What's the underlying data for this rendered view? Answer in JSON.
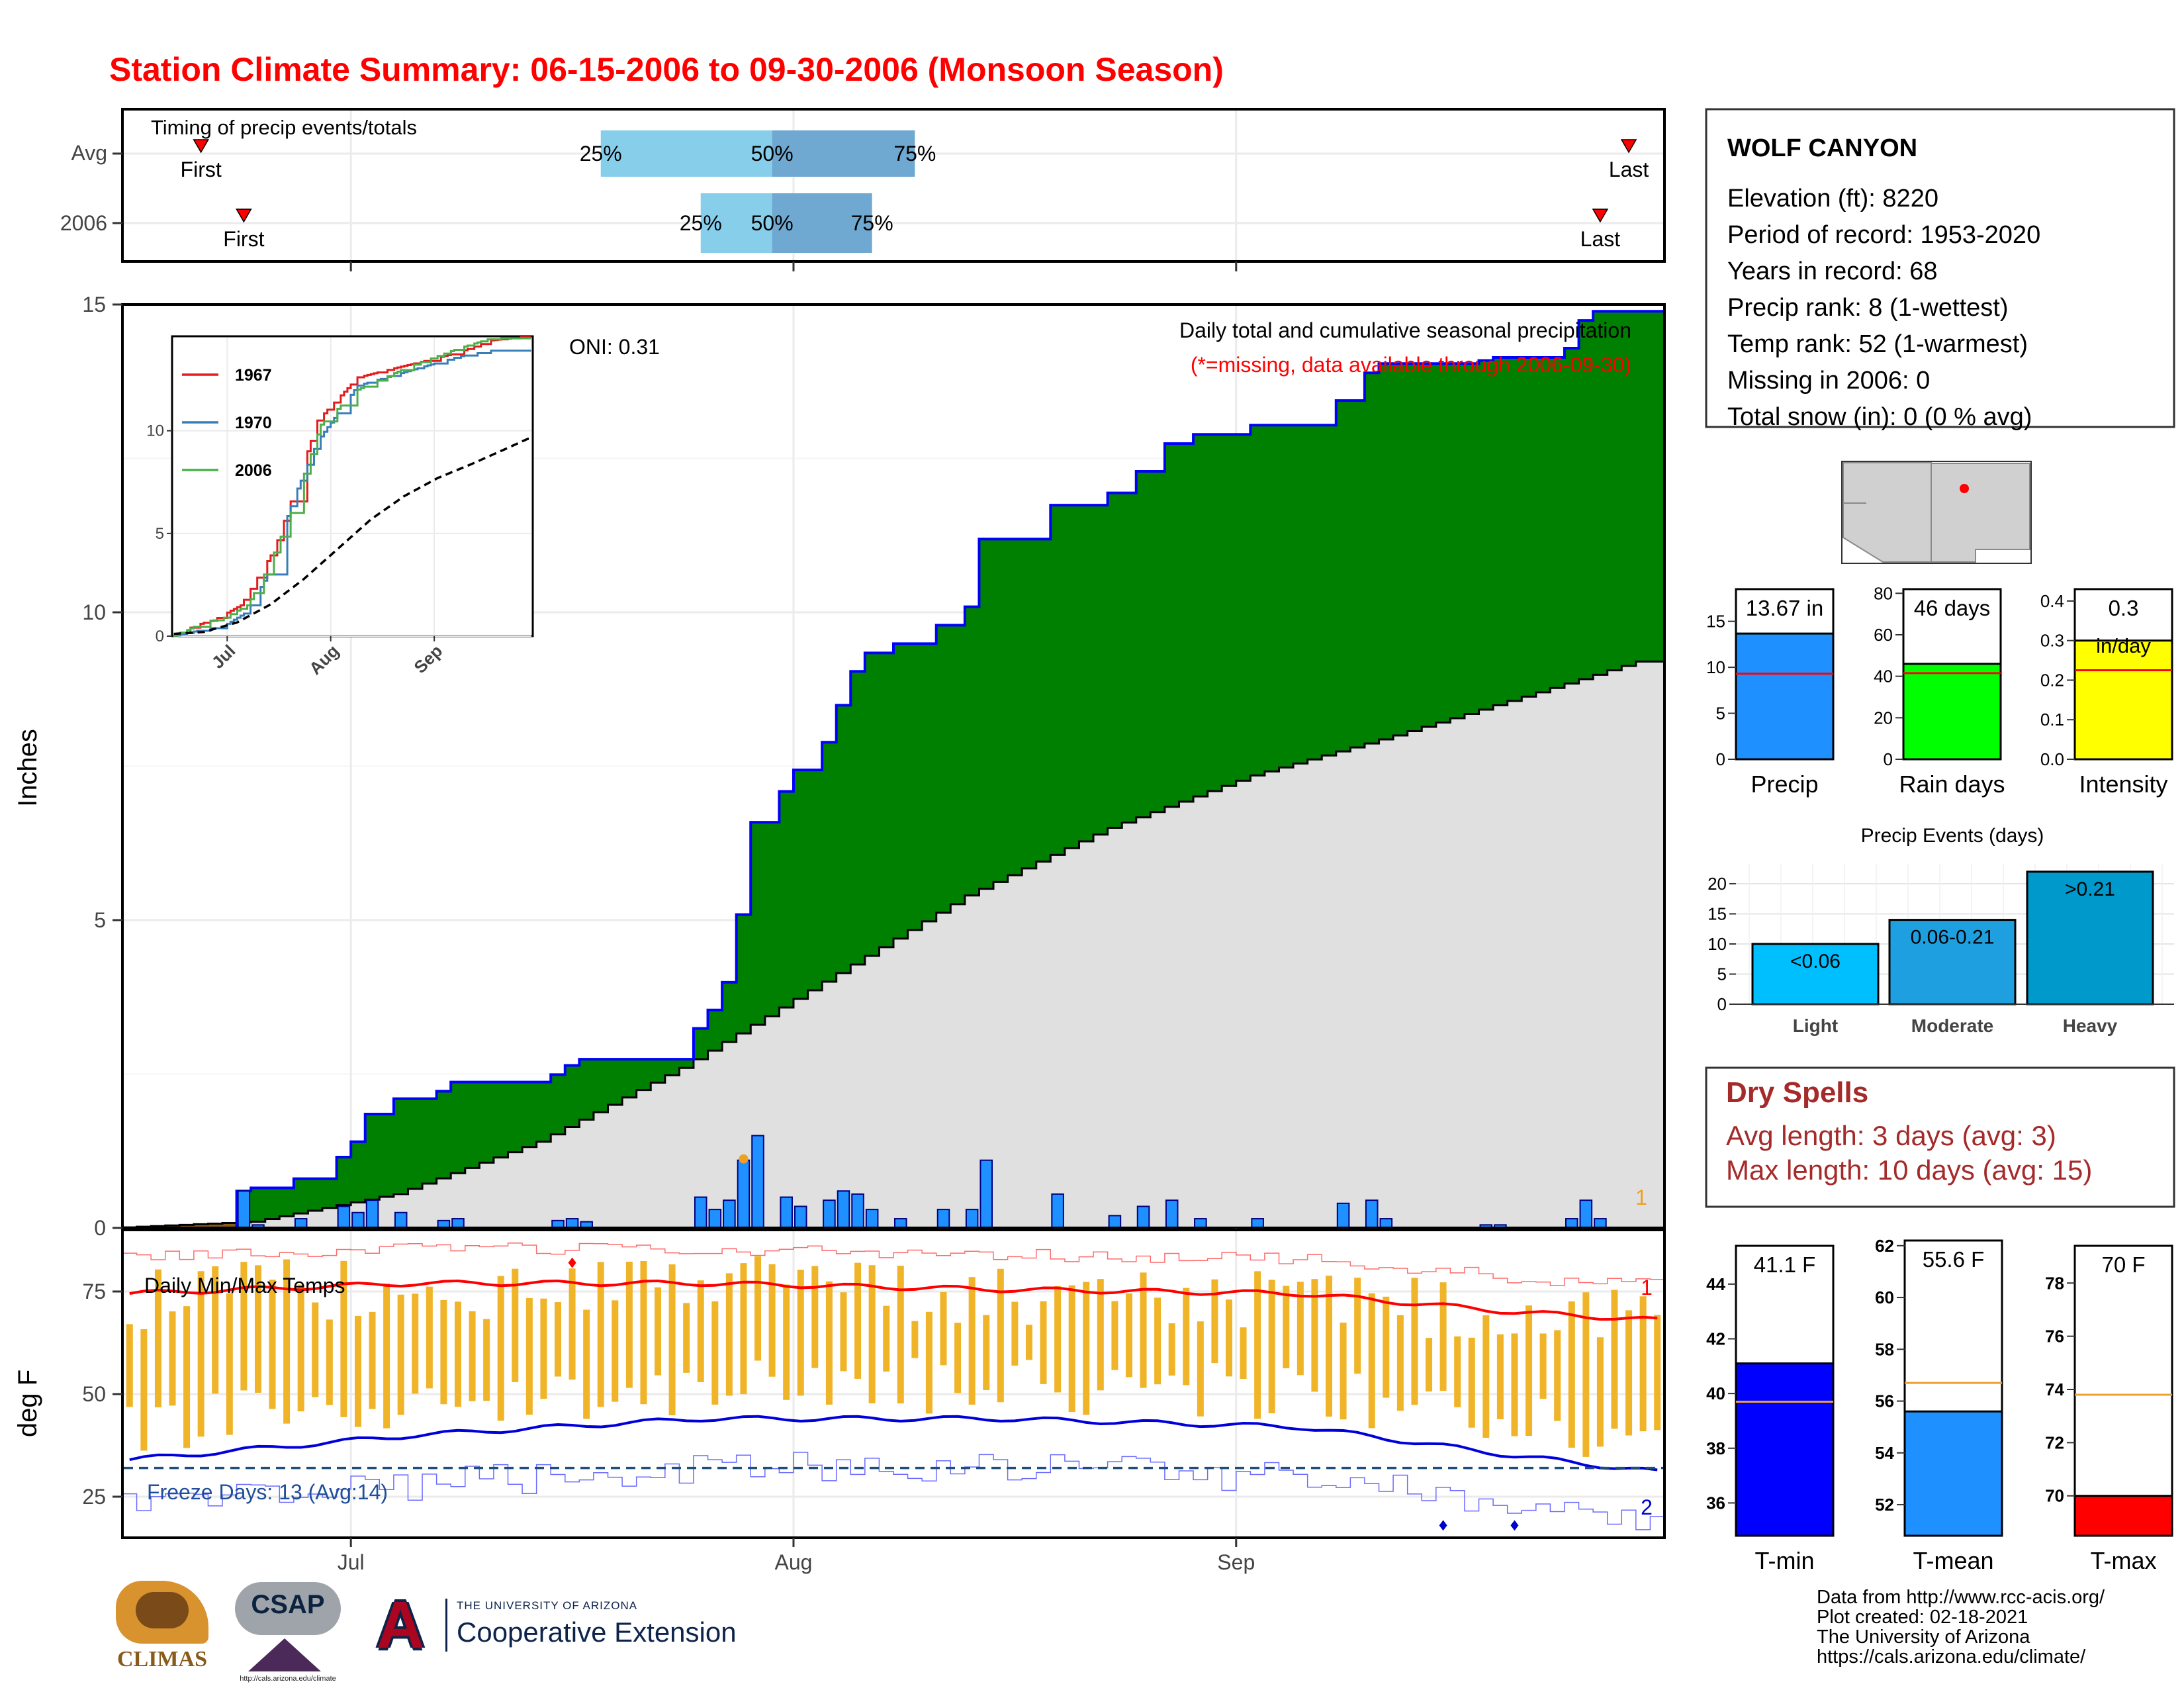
{
  "title": "Station Climate Summary: 06-15-2006 to 09-30-2006 (Monsoon Season)",
  "timing": {
    "label": "Timing of precip events/totals",
    "rows": [
      {
        "name": "Avg",
        "first": "2006-06-20",
        "last": "2006-09-28",
        "p25": "2006-07-18",
        "p50": "2006-07-30",
        "p75": "2006-08-09"
      },
      {
        "name": "2006",
        "first": "2006-06-23",
        "last": "2006-09-26",
        "p25": "2006-07-25",
        "p50": "2006-07-30",
        "p75": "2006-08-06"
      }
    ],
    "first_label": "First",
    "last_label": "Last",
    "pct_labels": [
      "25%",
      "50%",
      "75%"
    ]
  },
  "station": {
    "name": "WOLF CANYON",
    "lines": [
      "Elevation (ft): 8220",
      "Period of record: 1953-2020",
      "Years in record: 68",
      "Precip rank: 8 (1-wettest)",
      "Temp rank: 52 (1-warmest)",
      "Missing in 2006: 0",
      "Total snow (in): 0 (0 % avg)"
    ],
    "marker_color": "#ff0000"
  },
  "precip_panel": {
    "ylabel": "Inches",
    "oni": "ONI: 0.31",
    "note": "Daily total and cumulative seasonal precipitation",
    "note2": "(*=missing, data available through 2006-09-30)",
    "corner": "1",
    "yticks": [
      0,
      5,
      10,
      15
    ],
    "xticks": [
      "Jul",
      "Aug",
      "Sep"
    ]
  },
  "inset": {
    "series": [
      "1967",
      "1970",
      "2006"
    ],
    "colors": [
      "#e41a1c",
      "#377eb8",
      "#4daf4a"
    ],
    "yticks": [
      0,
      5,
      10
    ],
    "xticks": [
      "Jul",
      "Aug",
      "Sep"
    ]
  },
  "temp_panel": {
    "ylabel": "deg F",
    "label": "Daily Min/Max Temps",
    "freeze": "Freeze Days: 13 (Avg:14)",
    "corner_top": "1",
    "corner_bottom": "2",
    "yticks": [
      25,
      50,
      75
    ],
    "xticks": [
      "Jul",
      "Aug",
      "Sep"
    ]
  },
  "summary_bars": [
    {
      "label": "Precip",
      "value_text": "13.67 in",
      "value": 13.67,
      "avg": 9.3,
      "color": "#1e90ff",
      "ymax": 18.5,
      "ticks": [
        0,
        5,
        10,
        15
      ]
    },
    {
      "label": "Rain days",
      "value_text": "46 days",
      "value": 46,
      "avg": 41.5,
      "color": "#00ff00",
      "ymax": 82,
      "ticks": [
        0,
        20,
        40,
        60,
        80
      ]
    },
    {
      "label": "Intensity",
      "value_text": "0.3",
      "unit_text": "in/day",
      "value": 0.3,
      "avg": 0.225,
      "color": "#ffff00",
      "ymax": 0.43,
      "ticks": [
        "0.0",
        "0.1",
        "0.2",
        "0.3",
        "0.4"
      ]
    }
  ],
  "events": {
    "title": "Precip Events (days)",
    "categories": [
      "Light",
      "Moderate",
      "Heavy"
    ],
    "values": [
      10,
      14,
      22
    ],
    "labels": [
      "<0.06",
      "0.06-0.21",
      ">0.21"
    ],
    "colors": [
      "#00bfff",
      "#1ea0e0",
      "#0099cc"
    ],
    "ticks": [
      0,
      5,
      10,
      15,
      20
    ]
  },
  "dry_spells": {
    "title": "Dry Spells",
    "avg": "Avg length: 3 days (avg: 3)",
    "max": "Max length: 10 days (avg: 15)"
  },
  "temp_bars": [
    {
      "label": "T-min",
      "value_text": "41.1 F",
      "value": 41.1,
      "avg": 39.7,
      "color": "#0000ff",
      "ymin": 34.8,
      "ymax": 45.4,
      "ticks": [
        36,
        38,
        40,
        42,
        44
      ]
    },
    {
      "label": "T-mean",
      "value_text": "55.6 F",
      "value": 55.6,
      "avg": 56.7,
      "color": "#1e90ff",
      "ymin": 50.8,
      "ymax": 62.2,
      "ticks": [
        52,
        54,
        56,
        58,
        60,
        62
      ]
    },
    {
      "label": "T-max",
      "value_text": "70 F",
      "value": 70,
      "avg": 73.8,
      "color": "#ff0000",
      "ymin": 68.5,
      "ymax": 79.4,
      "ticks": [
        70,
        72,
        74,
        76,
        78
      ]
    }
  ],
  "footer": [
    "Data from http://www.rcc-acis.org/",
    "Plot created: 02-18-2021",
    "The University of Arizona",
    "https://cals.arizona.edu/climate/"
  ],
  "logos": {
    "climas": "CLIMAS",
    "csap": "CSAP",
    "csap_url": "http://cals.arizona.edu/climate",
    "ua_line1": "THE UNIVERSITY OF ARIZONA",
    "ua_line2": "Cooperative Extension"
  },
  "chart_data": [
    {
      "type": "area",
      "title": "Daily total and cumulative seasonal precipitation",
      "ylabel": "Inches",
      "x_start": "2006-06-15",
      "ylim": [
        0,
        15
      ],
      "daily_precip": [
        {
          "date": "2006-06-23",
          "value": 0.6
        },
        {
          "date": "2006-06-24",
          "value": 0.05
        },
        {
          "date": "2006-06-27",
          "value": 0.15
        },
        {
          "date": "2006-06-30",
          "value": 0.35
        },
        {
          "date": "2006-07-01",
          "value": 0.25
        },
        {
          "date": "2006-07-02",
          "value": 0.45
        },
        {
          "date": "2006-07-04",
          "value": 0.25
        },
        {
          "date": "2006-07-07",
          "value": 0.12
        },
        {
          "date": "2006-07-08",
          "value": 0.15
        },
        {
          "date": "2006-07-15",
          "value": 0.12
        },
        {
          "date": "2006-07-16",
          "value": 0.15
        },
        {
          "date": "2006-07-17",
          "value": 0.1
        },
        {
          "date": "2006-07-25",
          "value": 0.5
        },
        {
          "date": "2006-07-26",
          "value": 0.3
        },
        {
          "date": "2006-07-27",
          "value": 0.45
        },
        {
          "date": "2006-07-28",
          "value": 1.1
        },
        {
          "date": "2006-07-29",
          "value": 1.5
        },
        {
          "date": "2006-07-31",
          "value": 0.5
        },
        {
          "date": "2006-08-01",
          "value": 0.35
        },
        {
          "date": "2006-08-03",
          "value": 0.45
        },
        {
          "date": "2006-08-04",
          "value": 0.6
        },
        {
          "date": "2006-08-05",
          "value": 0.55
        },
        {
          "date": "2006-08-06",
          "value": 0.3
        },
        {
          "date": "2006-08-08",
          "value": 0.15
        },
        {
          "date": "2006-08-11",
          "value": 0.3
        },
        {
          "date": "2006-08-13",
          "value": 0.3
        },
        {
          "date": "2006-08-14",
          "value": 1.1
        },
        {
          "date": "2006-08-19",
          "value": 0.55
        },
        {
          "date": "2006-08-23",
          "value": 0.2
        },
        {
          "date": "2006-08-25",
          "value": 0.35
        },
        {
          "date": "2006-08-27",
          "value": 0.45
        },
        {
          "date": "2006-08-29",
          "value": 0.15
        },
        {
          "date": "2006-09-02",
          "value": 0.15
        },
        {
          "date": "2006-09-08",
          "value": 0.4
        },
        {
          "date": "2006-09-10",
          "value": 0.45
        },
        {
          "date": "2006-09-11",
          "value": 0.15
        },
        {
          "date": "2006-09-18",
          "value": 0.05
        },
        {
          "date": "2006-09-19",
          "value": 0.05
        },
        {
          "date": "2006-09-24",
          "value": 0.15
        },
        {
          "date": "2006-09-25",
          "value": 0.45
        },
        {
          "date": "2006-09-26",
          "value": 0.15
        }
      ],
      "avg_cumulative": [
        {
          "date": "2006-06-15",
          "value": 0.0
        },
        {
          "date": "2006-06-25",
          "value": 0.1
        },
        {
          "date": "2006-07-05",
          "value": 0.55
        },
        {
          "date": "2006-07-15",
          "value": 1.4
        },
        {
          "date": "2006-07-25",
          "value": 2.6
        },
        {
          "date": "2006-08-04",
          "value": 4.0
        },
        {
          "date": "2006-08-14",
          "value": 5.4
        },
        {
          "date": "2006-08-24",
          "value": 6.5
        },
        {
          "date": "2006-09-03",
          "value": 7.35
        },
        {
          "date": "2006-09-13",
          "value": 8.0
        },
        {
          "date": "2006-09-23",
          "value": 8.7
        },
        {
          "date": "2006-09-30",
          "value": 9.2
        }
      ]
    },
    {
      "type": "line",
      "title": "Daily Min/Max Temps",
      "ylabel": "deg F",
      "ylim": [
        15,
        90
      ],
      "series": [
        {
          "name": "Avg max",
          "x": [
            "2006-06-15",
            "2006-07-05",
            "2006-07-25",
            "2006-08-15",
            "2006-09-05",
            "2006-09-20",
            "2006-09-30"
          ],
          "values": [
            74.5,
            77,
            77,
            75.5,
            74.5,
            70,
            68
          ]
        },
        {
          "name": "Avg min",
          "x": [
            "2006-06-15",
            "2006-07-05",
            "2006-07-25",
            "2006-08-15",
            "2006-09-05",
            "2006-09-20",
            "2006-09-30"
          ],
          "values": [
            34,
            40,
            44,
            44,
            42,
            35,
            31
          ]
        }
      ],
      "freeze_line": 32
    }
  ]
}
